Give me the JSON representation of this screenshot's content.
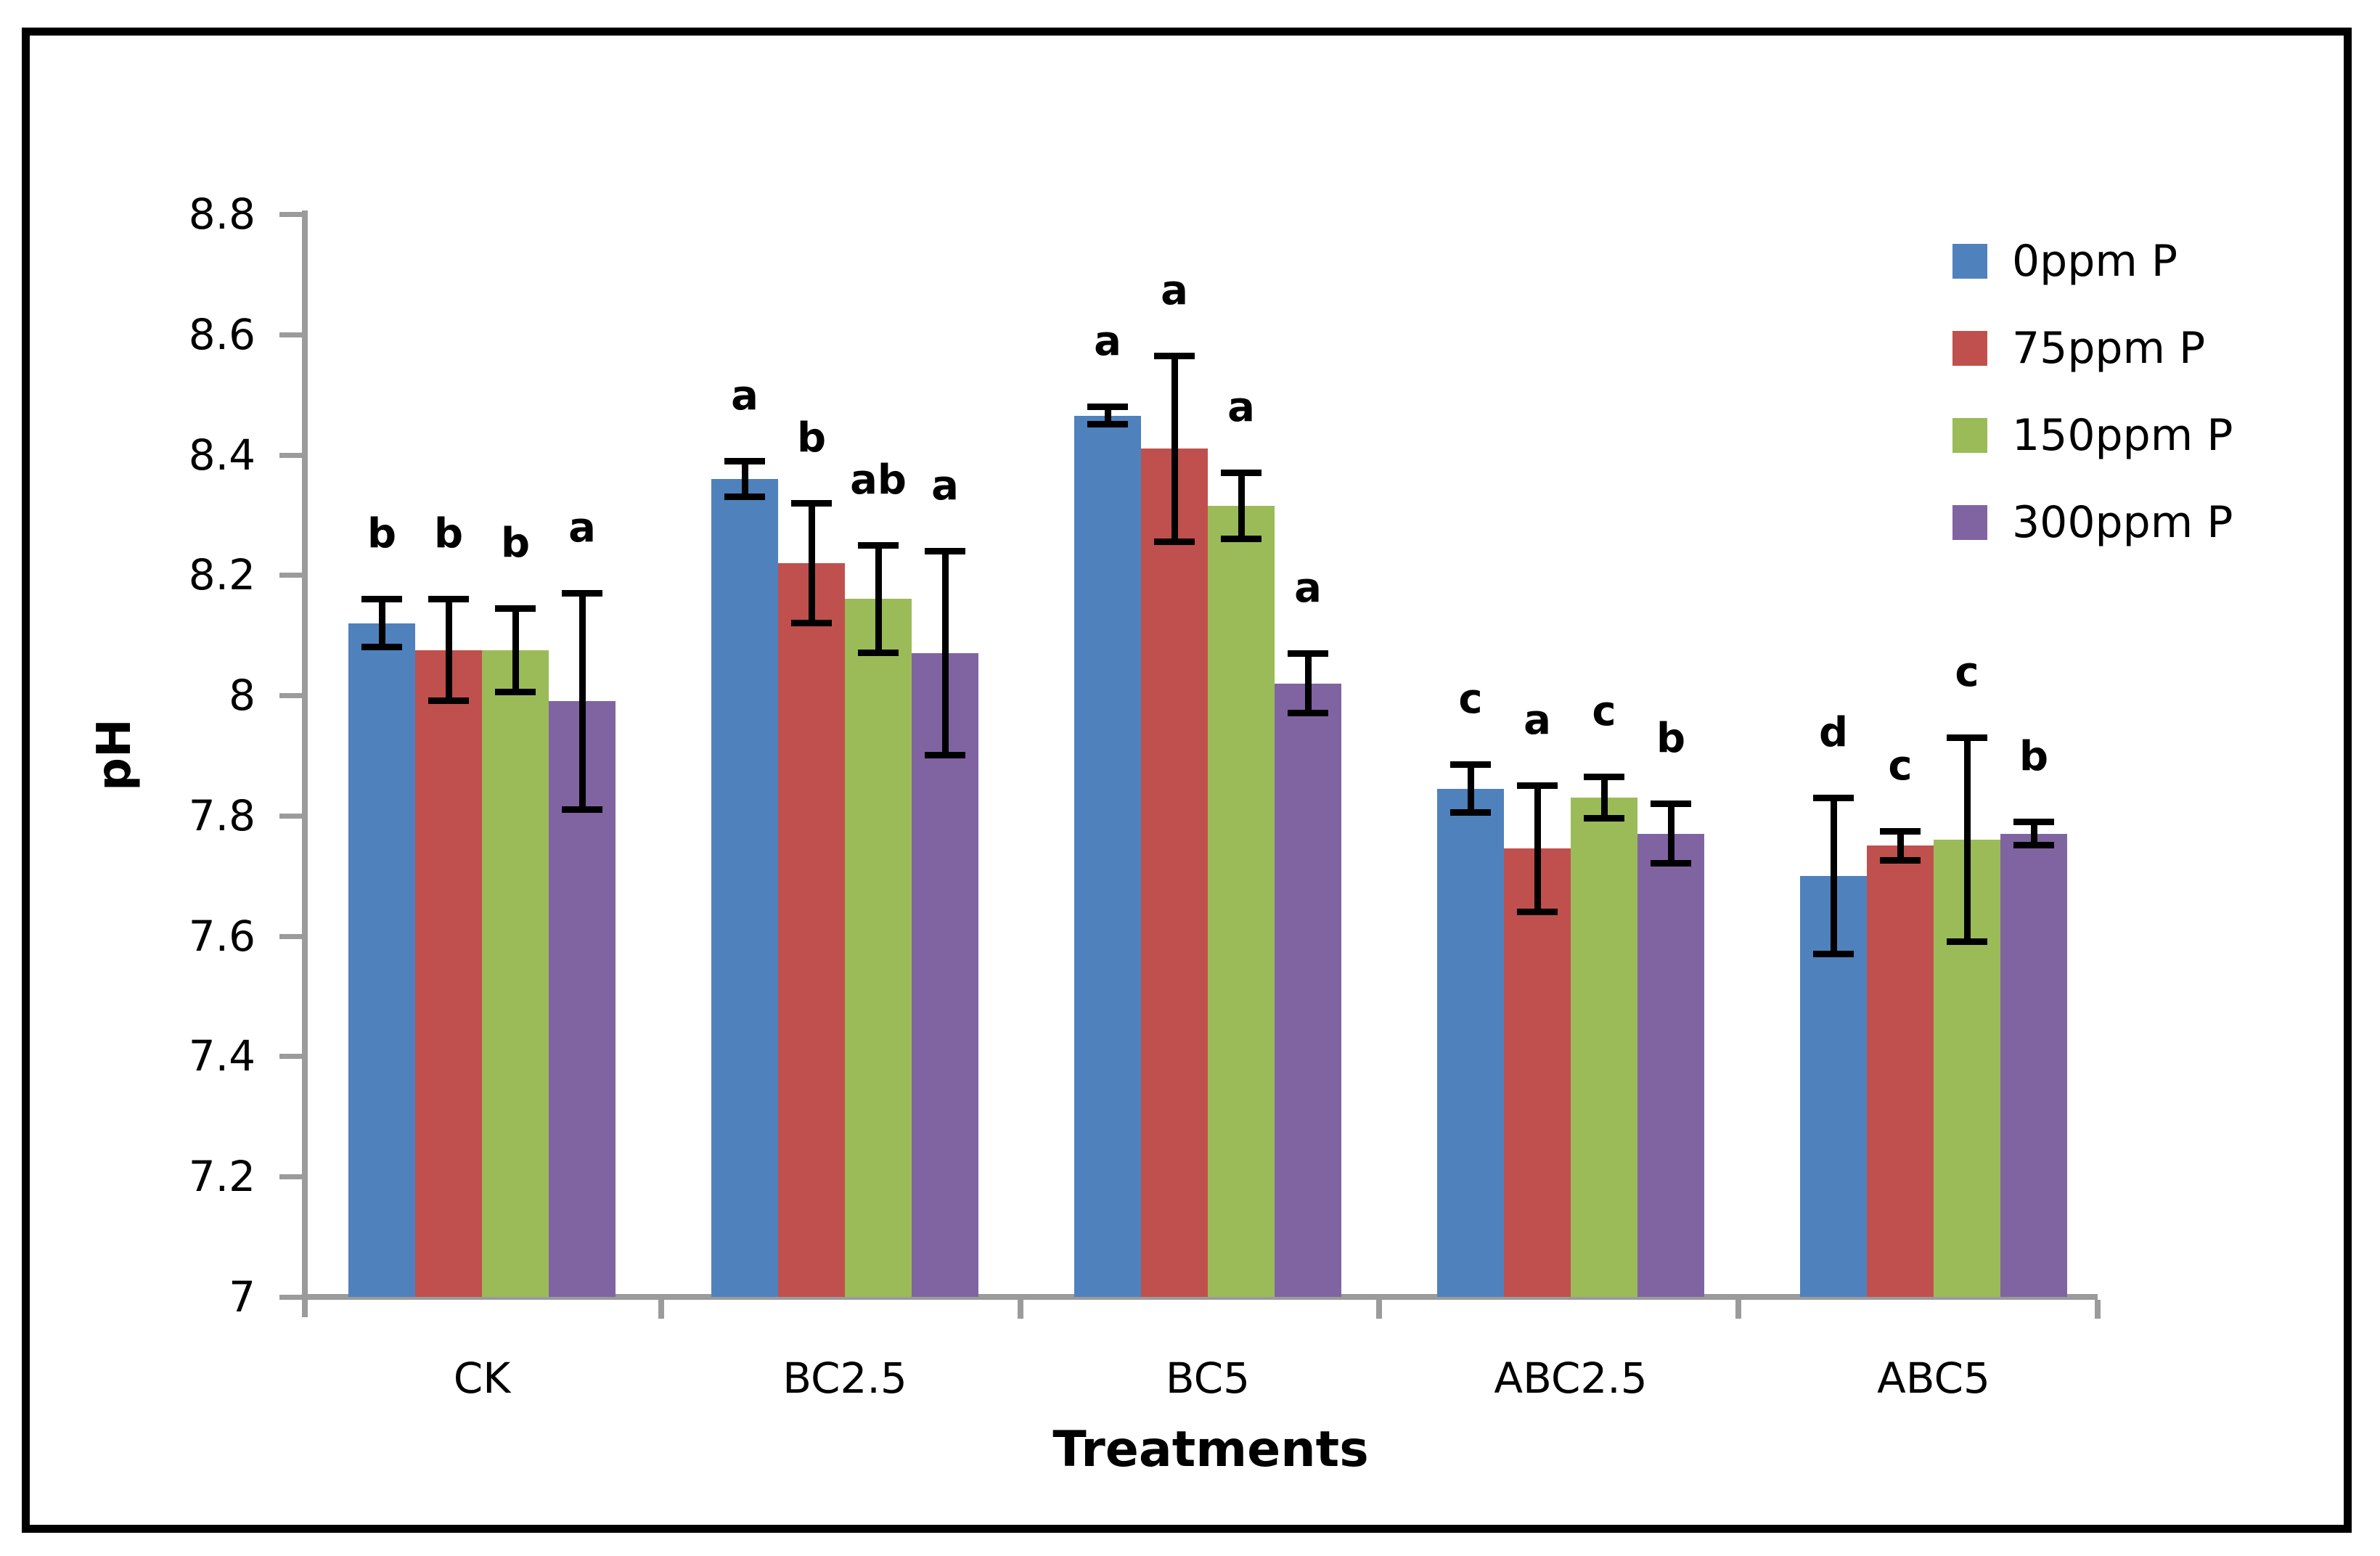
{
  "figure": {
    "border_color": "#000000",
    "background": "#ffffff",
    "axis_color": "#9b9b9b",
    "error_bar_color": "#000000",
    "text_color": "#000000"
  },
  "chart_data": {
    "type": "bar",
    "title": "",
    "xlabel": "Treatments",
    "ylabel": "pH",
    "ylim": [
      7,
      8.8
    ],
    "ytick_step": 0.2,
    "y_tick_labels": [
      "7",
      "7.2",
      "7.4",
      "7.6",
      "7.8",
      "8",
      "8.2",
      "8.4",
      "8.6",
      "8.8"
    ],
    "grid": false,
    "legend_position": "upper right",
    "categories": [
      "CK",
      "BC2.5",
      "BC5",
      "ABC2.5",
      "ABC5"
    ],
    "series": [
      {
        "name": "0ppm P",
        "color": "#4F81BD",
        "values": [
          8.12,
          8.36,
          8.465,
          7.845,
          7.7
        ],
        "errors": [
          0.04,
          0.03,
          0.015,
          0.04,
          0.13
        ],
        "letters": [
          "b",
          "a",
          "a",
          "c",
          "d"
        ]
      },
      {
        "name": "75ppm P",
        "color": "#C0504D",
        "values": [
          8.075,
          8.22,
          8.41,
          7.745,
          7.75
        ],
        "errors": [
          0.085,
          0.1,
          0.155,
          0.105,
          0.025
        ],
        "letters": [
          "b",
          "b",
          "a",
          "a",
          "c"
        ]
      },
      {
        "name": "150ppm P",
        "color": "#9BBB59",
        "values": [
          8.075,
          8.16,
          8.315,
          7.83,
          7.76
        ],
        "errors": [
          0.07,
          0.09,
          0.055,
          0.035,
          0.17
        ],
        "letters": [
          "b",
          "ab",
          "a",
          "c",
          "c"
        ]
      },
      {
        "name": "300ppm P",
        "color": "#8064A2",
        "values": [
          7.99,
          8.07,
          8.02,
          7.77,
          7.77
        ],
        "errors": [
          0.18,
          0.17,
          0.05,
          0.05,
          0.02
        ],
        "letters": [
          "a",
          "a",
          "a",
          "b",
          "b"
        ]
      }
    ]
  }
}
